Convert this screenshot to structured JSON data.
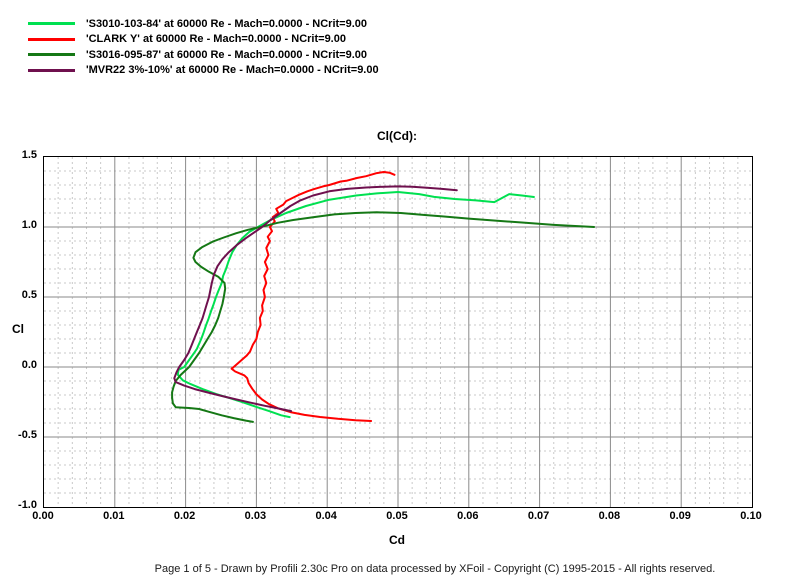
{
  "chart": {
    "title": "Cl(Cd):",
    "xlabel": "Cd",
    "ylabel": "Cl"
  },
  "footer": {
    "text": "Page 1 of 5   -   Drawn by Profili 2.30c Pro on data processed by  XFoil - Copyright (C) 1995-2015 - All rights reserved."
  },
  "chart_data": {
    "type": "line",
    "title": "Cl(Cd):",
    "xlabel": "Cd",
    "ylabel": "Cl",
    "xlim": [
      0.0,
      0.1
    ],
    "ylim": [
      -1.0,
      1.5
    ],
    "x_major_step": 0.01,
    "x_minor_step": 0.002,
    "y_major_step": 0.5,
    "y_minor_step": 0.1,
    "grid": true,
    "legend_position": "top-left",
    "frame_color": "#000000",
    "grid_major_color": "#8a8a8a",
    "grid_minor_color": "#c9c9c9",
    "x_ticks": [
      "0.00",
      "0.01",
      "0.02",
      "0.03",
      "0.04",
      "0.05",
      "0.06",
      "0.07",
      "0.08",
      "0.09",
      "0.10"
    ],
    "y_ticks": [
      "1.5",
      "1.0",
      "0.5",
      "0.0",
      "-0.5",
      "-1.0"
    ],
    "series": [
      {
        "name": "S3010-103-84",
        "label": "'S3010-103-84' at 60000 Re - Mach=0.0000 - NCrit=9.00",
        "color": "#00e050",
        "points": [
          [
            0.0347,
            -0.358
          ],
          [
            0.0335,
            -0.345
          ],
          [
            0.0318,
            -0.315
          ],
          [
            0.03,
            -0.285
          ],
          [
            0.028,
            -0.25
          ],
          [
            0.0262,
            -0.222
          ],
          [
            0.0243,
            -0.193
          ],
          [
            0.0224,
            -0.158
          ],
          [
            0.0207,
            -0.122
          ],
          [
            0.0196,
            -0.095
          ],
          [
            0.0189,
            -0.055
          ],
          [
            0.019,
            -0.02
          ],
          [
            0.0198,
            0.0
          ],
          [
            0.0205,
            0.05
          ],
          [
            0.0212,
            0.1
          ],
          [
            0.0216,
            0.13
          ],
          [
            0.0222,
            0.2
          ],
          [
            0.0225,
            0.24
          ],
          [
            0.0229,
            0.3
          ],
          [
            0.0232,
            0.34
          ],
          [
            0.0236,
            0.4
          ],
          [
            0.0239,
            0.44
          ],
          [
            0.0243,
            0.5
          ],
          [
            0.0246,
            0.54
          ],
          [
            0.0251,
            0.6
          ],
          [
            0.0253,
            0.65
          ],
          [
            0.0257,
            0.7
          ],
          [
            0.0261,
            0.76
          ],
          [
            0.0266,
            0.82
          ],
          [
            0.0272,
            0.87
          ],
          [
            0.028,
            0.92
          ],
          [
            0.029,
            0.965
          ],
          [
            0.0304,
            1.005
          ],
          [
            0.032,
            1.05
          ],
          [
            0.0342,
            1.1
          ],
          [
            0.037,
            1.15
          ],
          [
            0.0403,
            1.195
          ],
          [
            0.0441,
            1.225
          ],
          [
            0.047,
            1.24
          ],
          [
            0.05,
            1.25
          ],
          [
            0.053,
            1.235
          ],
          [
            0.0551,
            1.215
          ],
          [
            0.058,
            1.2
          ],
          [
            0.061,
            1.19
          ],
          [
            0.0636,
            1.178
          ],
          [
            0.0657,
            1.235
          ],
          [
            0.0675,
            1.225
          ],
          [
            0.0692,
            1.214
          ]
        ]
      },
      {
        "name": "CLARK Y",
        "label": "'CLARK Y' at 60000 Re - Mach=0.0000 - NCrit=9.00",
        "color": "#ff0000",
        "points": [
          [
            0.0462,
            -0.386
          ],
          [
            0.044,
            -0.38
          ],
          [
            0.0415,
            -0.37
          ],
          [
            0.039,
            -0.357
          ],
          [
            0.0368,
            -0.342
          ],
          [
            0.0348,
            -0.322
          ],
          [
            0.0331,
            -0.296
          ],
          [
            0.0318,
            -0.266
          ],
          [
            0.0308,
            -0.232
          ],
          [
            0.03,
            -0.195
          ],
          [
            0.0294,
            -0.155
          ],
          [
            0.0289,
            -0.115
          ],
          [
            0.0287,
            -0.08
          ],
          [
            0.0283,
            -0.06
          ],
          [
            0.027,
            -0.032
          ],
          [
            0.0265,
            -0.012
          ],
          [
            0.0268,
            0.0
          ],
          [
            0.0277,
            0.04
          ],
          [
            0.0286,
            0.08
          ],
          [
            0.0291,
            0.11
          ],
          [
            0.0295,
            0.16
          ],
          [
            0.03,
            0.2
          ],
          [
            0.0302,
            0.25
          ],
          [
            0.0306,
            0.3
          ],
          [
            0.0305,
            0.35
          ],
          [
            0.0309,
            0.4
          ],
          [
            0.0308,
            0.44
          ],
          [
            0.0312,
            0.5
          ],
          [
            0.031,
            0.55
          ],
          [
            0.0314,
            0.6
          ],
          [
            0.0311,
            0.65
          ],
          [
            0.0316,
            0.7
          ],
          [
            0.0312,
            0.75
          ],
          [
            0.0317,
            0.8
          ],
          [
            0.0314,
            0.85
          ],
          [
            0.0319,
            0.9
          ],
          [
            0.0316,
            0.93
          ],
          [
            0.0322,
            0.97
          ],
          [
            0.0319,
            1.0
          ],
          [
            0.0326,
            1.04
          ],
          [
            0.0323,
            1.07
          ],
          [
            0.0331,
            1.1
          ],
          [
            0.0328,
            1.13
          ],
          [
            0.0338,
            1.16
          ],
          [
            0.0342,
            1.185
          ],
          [
            0.0352,
            1.21
          ],
          [
            0.036,
            1.23
          ],
          [
            0.0372,
            1.255
          ],
          [
            0.0381,
            1.27
          ],
          [
            0.0394,
            1.29
          ],
          [
            0.0403,
            1.3
          ],
          [
            0.0419,
            1.325
          ],
          [
            0.0427,
            1.33
          ],
          [
            0.0442,
            1.35
          ],
          [
            0.0455,
            1.363
          ],
          [
            0.047,
            1.385
          ],
          [
            0.048,
            1.393
          ],
          [
            0.0488,
            1.388
          ],
          [
            0.0495,
            1.373
          ]
        ]
      },
      {
        "name": "S3016-095-87",
        "label": "'S3016-095-87' at 60000 Re - Mach=0.0000 - NCrit=9.00",
        "color": "#157815",
        "points": [
          [
            0.0295,
            -0.392
          ],
          [
            0.0285,
            -0.383
          ],
          [
            0.0268,
            -0.365
          ],
          [
            0.0251,
            -0.345
          ],
          [
            0.0233,
            -0.32
          ],
          [
            0.0219,
            -0.3
          ],
          [
            0.0205,
            -0.293
          ],
          [
            0.0192,
            -0.289
          ],
          [
            0.0186,
            -0.287
          ],
          [
            0.0182,
            -0.26
          ],
          [
            0.0181,
            -0.22
          ],
          [
            0.0181,
            -0.18
          ],
          [
            0.0183,
            -0.14
          ],
          [
            0.0186,
            -0.1
          ],
          [
            0.0193,
            -0.057
          ],
          [
            0.0205,
            0.0
          ],
          [
            0.0212,
            0.05
          ],
          [
            0.0219,
            0.1
          ],
          [
            0.0225,
            0.15
          ],
          [
            0.0231,
            0.2
          ],
          [
            0.0237,
            0.25
          ],
          [
            0.0242,
            0.3
          ],
          [
            0.0246,
            0.35
          ],
          [
            0.0249,
            0.4
          ],
          [
            0.0252,
            0.45
          ],
          [
            0.0254,
            0.5
          ],
          [
            0.0256,
            0.56
          ],
          [
            0.0255,
            0.6
          ],
          [
            0.0246,
            0.645
          ],
          [
            0.0233,
            0.68
          ],
          [
            0.0222,
            0.715
          ],
          [
            0.0214,
            0.75
          ],
          [
            0.0211,
            0.78
          ],
          [
            0.0214,
            0.82
          ],
          [
            0.0223,
            0.855
          ],
          [
            0.0238,
            0.895
          ],
          [
            0.0254,
            0.925
          ],
          [
            0.0271,
            0.955
          ],
          [
            0.0288,
            0.98
          ],
          [
            0.031,
            1.005
          ],
          [
            0.033,
            1.03
          ],
          [
            0.0352,
            1.05
          ],
          [
            0.038,
            1.07
          ],
          [
            0.041,
            1.09
          ],
          [
            0.044,
            1.1
          ],
          [
            0.047,
            1.105
          ],
          [
            0.0504,
            1.1
          ],
          [
            0.054,
            1.085
          ],
          [
            0.0565,
            1.075
          ],
          [
            0.06,
            1.06
          ],
          [
            0.064,
            1.045
          ],
          [
            0.068,
            1.03
          ],
          [
            0.072,
            1.015
          ],
          [
            0.0777,
            1.0
          ]
        ]
      },
      {
        "name": "MVR22 3%-10%",
        "label": "'MVR22 3%-10%' at 60000 Re - Mach=0.0000 - NCrit=9.00",
        "color": "#6f104e",
        "points": [
          [
            0.0349,
            -0.315
          ],
          [
            0.0332,
            -0.297
          ],
          [
            0.0312,
            -0.277
          ],
          [
            0.0292,
            -0.255
          ],
          [
            0.0272,
            -0.232
          ],
          [
            0.0252,
            -0.208
          ],
          [
            0.0232,
            -0.183
          ],
          [
            0.0213,
            -0.158
          ],
          [
            0.0198,
            -0.133
          ],
          [
            0.0186,
            -0.108
          ],
          [
            0.0184,
            -0.08
          ],
          [
            0.0187,
            -0.04
          ],
          [
            0.0191,
            0.0
          ],
          [
            0.0198,
            0.05
          ],
          [
            0.0204,
            0.1
          ],
          [
            0.0208,
            0.15
          ],
          [
            0.0212,
            0.2
          ],
          [
            0.0216,
            0.25
          ],
          [
            0.022,
            0.3
          ],
          [
            0.0224,
            0.35
          ],
          [
            0.0227,
            0.4
          ],
          [
            0.023,
            0.45
          ],
          [
            0.0233,
            0.5
          ],
          [
            0.0235,
            0.55
          ],
          [
            0.0237,
            0.6
          ],
          [
            0.024,
            0.66
          ],
          [
            0.0245,
            0.72
          ],
          [
            0.0252,
            0.77
          ],
          [
            0.0261,
            0.82
          ],
          [
            0.0272,
            0.87
          ],
          [
            0.0285,
            0.92
          ],
          [
            0.0295,
            0.955
          ],
          [
            0.0308,
            1.0
          ],
          [
            0.032,
            1.05
          ],
          [
            0.0334,
            1.1
          ],
          [
            0.0348,
            1.15
          ],
          [
            0.0362,
            1.19
          ],
          [
            0.038,
            1.225
          ],
          [
            0.0403,
            1.255
          ],
          [
            0.0428,
            1.272
          ],
          [
            0.0455,
            1.282
          ],
          [
            0.048,
            1.288
          ],
          [
            0.05,
            1.29
          ],
          [
            0.052,
            1.287
          ],
          [
            0.0541,
            1.28
          ],
          [
            0.0562,
            1.272
          ],
          [
            0.0583,
            1.262
          ]
        ]
      }
    ]
  }
}
